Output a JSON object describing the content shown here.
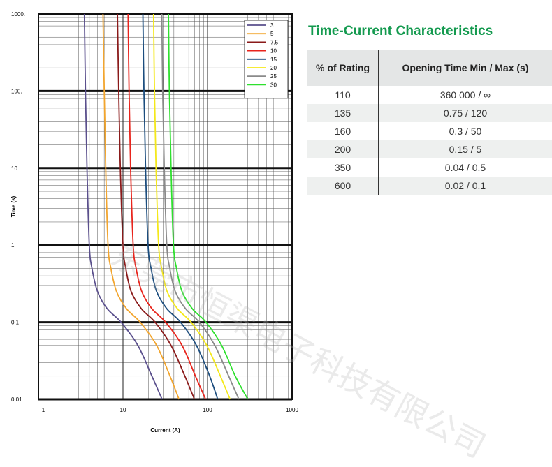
{
  "chart_data": {
    "type": "line",
    "title": "",
    "xlabel": "Current (A)",
    "ylabel": "Time (s)",
    "xscale": "log",
    "yscale": "log",
    "xlim": [
      1,
      1000
    ],
    "ylim": [
      0.01,
      1000
    ],
    "x_tick_labels": [
      {
        "value": 1,
        "label": "1"
      },
      {
        "value": 10,
        "label": "10"
      },
      {
        "value": 100,
        "label": "100"
      },
      {
        "value": 1000,
        "label": "1000"
      }
    ],
    "y_tick_labels": [
      {
        "value": 1000,
        "label": "1000."
      },
      {
        "value": 100,
        "label": "100."
      },
      {
        "value": 10,
        "label": "10."
      },
      {
        "value": 1,
        "label": "1."
      },
      {
        "value": 0.1,
        "label": "0.1"
      },
      {
        "value": 0.01,
        "label": "0.01"
      }
    ],
    "grid": true,
    "legend_position": "top-right",
    "series": [
      {
        "name": "3",
        "color": "#5a4f8c",
        "points": [
          [
            3.5,
            1000
          ],
          [
            3.6,
            100
          ],
          [
            3.75,
            10
          ],
          [
            4.0,
            1.0
          ],
          [
            4.3,
            0.5
          ],
          [
            5.0,
            0.25
          ],
          [
            6.5,
            0.15
          ],
          [
            9.5,
            0.1
          ],
          [
            15,
            0.05
          ],
          [
            22,
            0.02
          ],
          [
            29,
            0.01
          ]
        ]
      },
      {
        "name": "5",
        "color": "#f2a52e",
        "points": [
          [
            5.8,
            1000
          ],
          [
            6.0,
            100
          ],
          [
            6.25,
            10
          ],
          [
            6.65,
            1.0
          ],
          [
            7.2,
            0.5
          ],
          [
            8.4,
            0.25
          ],
          [
            11,
            0.15
          ],
          [
            16,
            0.1
          ],
          [
            25,
            0.05
          ],
          [
            36,
            0.02
          ],
          [
            46,
            0.01
          ]
        ]
      },
      {
        "name": "7.5",
        "color": "#8a1a1a",
        "points": [
          [
            8.6,
            1000
          ],
          [
            8.9,
            100
          ],
          [
            9.3,
            10
          ],
          [
            10.0,
            1.0
          ],
          [
            10.8,
            0.5
          ],
          [
            12.5,
            0.25
          ],
          [
            16.5,
            0.15
          ],
          [
            24,
            0.1
          ],
          [
            37,
            0.05
          ],
          [
            54,
            0.02
          ],
          [
            70,
            0.01
          ]
        ]
      },
      {
        "name": "10",
        "color": "#e8241c",
        "points": [
          [
            11.5,
            1000
          ],
          [
            11.8,
            100
          ],
          [
            12.3,
            10
          ],
          [
            13.2,
            1.0
          ],
          [
            14.3,
            0.5
          ],
          [
            16.7,
            0.25
          ],
          [
            22,
            0.15
          ],
          [
            32,
            0.1
          ],
          [
            50,
            0.05
          ],
          [
            72,
            0.02
          ],
          [
            95,
            0.01
          ]
        ]
      },
      {
        "name": "15",
        "color": "#1c4d7e",
        "points": [
          [
            17.2,
            1000
          ],
          [
            17.7,
            100
          ],
          [
            18.5,
            10
          ],
          [
            19.8,
            1.0
          ],
          [
            21.5,
            0.5
          ],
          [
            25,
            0.25
          ],
          [
            33,
            0.15
          ],
          [
            48,
            0.1
          ],
          [
            74,
            0.05
          ],
          [
            106,
            0.02
          ],
          [
            132,
            0.01
          ]
        ]
      },
      {
        "name": "20",
        "color": "#f4e81a",
        "points": [
          [
            23,
            1000
          ],
          [
            23.6,
            100
          ],
          [
            24.6,
            10
          ],
          [
            26.4,
            1.0
          ],
          [
            28.7,
            0.5
          ],
          [
            33.3,
            0.25
          ],
          [
            44,
            0.15
          ],
          [
            64,
            0.1
          ],
          [
            98,
            0.05
          ],
          [
            142,
            0.02
          ],
          [
            185,
            0.01
          ]
        ]
      },
      {
        "name": "25",
        "color": "#8a8a8a",
        "points": [
          [
            28.8,
            1000
          ],
          [
            29.5,
            100
          ],
          [
            30.8,
            10
          ],
          [
            33,
            1.0
          ],
          [
            35.8,
            0.5
          ],
          [
            41.6,
            0.25
          ],
          [
            55,
            0.15
          ],
          [
            80,
            0.1
          ],
          [
            122,
            0.05
          ],
          [
            178,
            0.02
          ],
          [
            235,
            0.01
          ]
        ]
      },
      {
        "name": "30",
        "color": "#2ee02e",
        "points": [
          [
            34.5,
            1000
          ],
          [
            35.4,
            100
          ],
          [
            37,
            10
          ],
          [
            39.6,
            1.0
          ],
          [
            43,
            0.5
          ],
          [
            50,
            0.25
          ],
          [
            66,
            0.15
          ],
          [
            96,
            0.1
          ],
          [
            147,
            0.05
          ],
          [
            213,
            0.02
          ],
          [
            300,
            0.01
          ]
        ]
      }
    ]
  },
  "characteristics": {
    "title": "Time-Current Characteristics",
    "headers": [
      "% of Rating",
      "Opening Time Min / Max (s)"
    ],
    "rows": [
      [
        "110",
        "360 000 / ∞"
      ],
      [
        "135",
        "0.75 / 120"
      ],
      [
        "160",
        "0.3 / 50"
      ],
      [
        "200",
        "0.15 / 5"
      ],
      [
        "350",
        "0.04 / 0.5"
      ],
      [
        "600",
        "0.02 / 0.1"
      ]
    ],
    "colors": {
      "title": "#149a4f",
      "header_bg": "#e4e6e6",
      "row_shade": "#eef0ef"
    }
  },
  "watermark": "东莞市恒渠电子科技有限公司"
}
